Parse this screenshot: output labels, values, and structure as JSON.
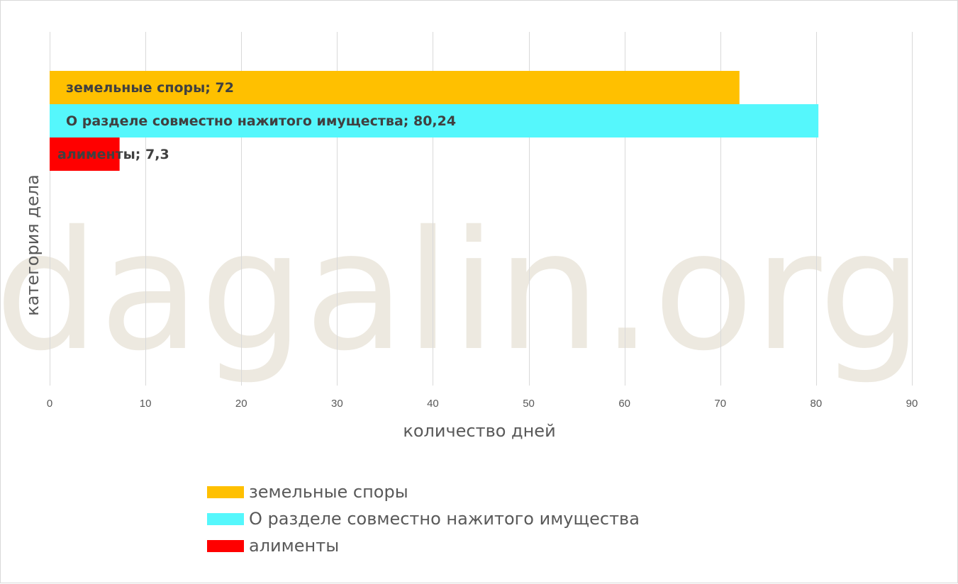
{
  "watermark": "dagalin.org",
  "chart_data": {
    "type": "bar",
    "orientation": "horizontal",
    "title": "",
    "xlabel": "количество дней",
    "ylabel": "категория дела",
    "xlim": [
      0,
      90
    ],
    "xticks": [
      0,
      10,
      20,
      30,
      40,
      50,
      60,
      70,
      80,
      90
    ],
    "grid": "vertical",
    "legend_position": "bottom",
    "series": [
      {
        "name": "земельные споры",
        "value": 72,
        "value_label": "72",
        "color": "#ffc000"
      },
      {
        "name": "О разделе совместно нажитого имущества",
        "value": 80.24,
        "value_label": "80,24",
        "color": "#55f7fc"
      },
      {
        "name": "алименты",
        "value": 7.3,
        "value_label": "7,3",
        "color": "#ff0000"
      }
    ]
  }
}
